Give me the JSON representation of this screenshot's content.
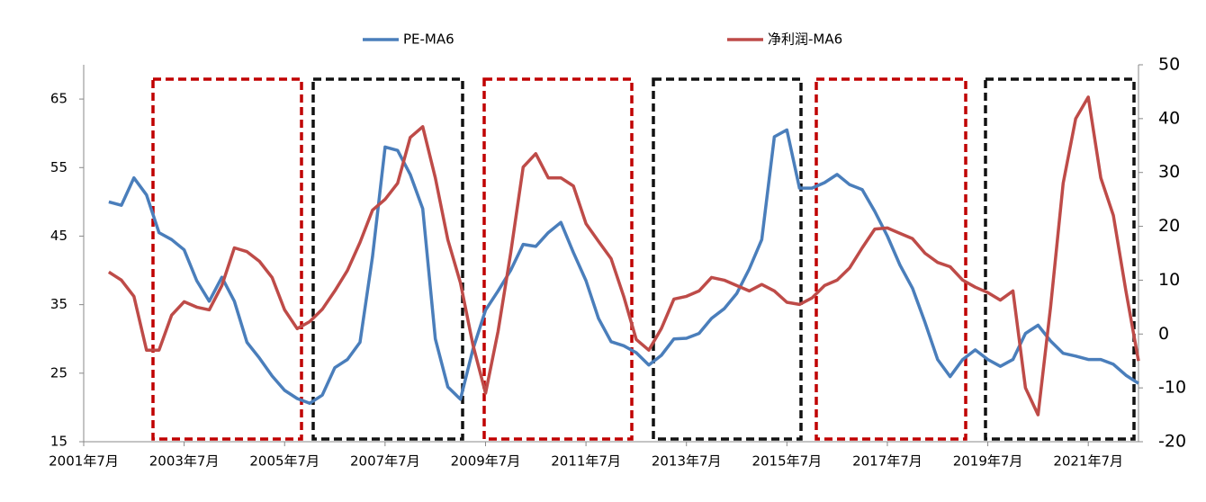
{
  "chart_data": {
    "type": "line",
    "categories": [
      "2001年7月",
      null,
      null,
      null,
      null,
      null,
      null,
      null,
      "2003年7月",
      null,
      null,
      null,
      null,
      null,
      null,
      null,
      "2005年7月",
      null,
      null,
      null,
      null,
      null,
      null,
      null,
      "2007年7月",
      null,
      null,
      null,
      null,
      null,
      null,
      null,
      "2009年7月",
      null,
      null,
      null,
      null,
      null,
      null,
      null,
      "2011年7月",
      null,
      null,
      null,
      null,
      null,
      null,
      null,
      "2013年7月",
      null,
      null,
      null,
      null,
      null,
      null,
      null,
      "2015年7月",
      null,
      null,
      null,
      null,
      null,
      null,
      null,
      "2017年7月",
      null,
      null,
      null,
      null,
      null,
      null,
      null,
      "2019年7月",
      null,
      null,
      null,
      null,
      null,
      null,
      null,
      "2021年7月",
      null,
      null,
      null,
      null
    ],
    "series": [
      {
        "name": "PE-MA6",
        "color": "#4a7ebb",
        "axis": "y",
        "values": [
          null,
          null,
          50,
          49.5,
          53.5,
          51,
          45.5,
          44.5,
          43,
          38.5,
          35.5,
          39,
          35.5,
          29.5,
          27.2,
          24.6,
          22.5,
          21.3,
          20.6,
          21.8,
          25.8,
          27,
          29.5,
          42,
          58,
          57.5,
          54,
          49,
          30,
          23,
          21.2,
          28.5,
          34.2,
          37,
          40,
          43.8,
          43.5,
          45.5,
          47,
          42.6,
          38.5,
          33,
          29.6,
          29,
          28,
          26.2,
          27.6,
          30,
          30.1,
          30.8,
          33,
          34.4,
          36.6,
          40.2,
          44.5,
          59.5,
          60.5,
          52,
          52,
          52.8,
          54,
          52.5,
          51.8,
          48.6,
          45,
          40.8,
          37.4,
          32.4,
          27,
          24.5,
          27,
          28.4,
          27,
          26,
          27,
          30.8,
          32,
          29.7,
          27.9,
          27.5,
          27,
          27,
          26.3,
          24.7,
          23.5
        ]
      },
      {
        "name": "净利润-MA6",
        "color": "#be4b48",
        "axis": "y2",
        "values": [
          null,
          null,
          11.5,
          10,
          7,
          -3,
          -3,
          3.5,
          6,
          5,
          4.5,
          9,
          16,
          15.3,
          13.5,
          10.5,
          4.5,
          1,
          2.3,
          4.6,
          8,
          11.8,
          17,
          23,
          25,
          28,
          36.5,
          38.5,
          29,
          17.5,
          9.5,
          -2,
          -11,
          0.5,
          15,
          31,
          33.5,
          29,
          29,
          27.5,
          20.5,
          17.2,
          14,
          7,
          -1,
          -3,
          1,
          6.5,
          7,
          8,
          10.5,
          10,
          9,
          8,
          9.2,
          8,
          5.9,
          5.5,
          6.7,
          9,
          10,
          12.3,
          16,
          19.5,
          19.7,
          18.7,
          17.7,
          15,
          13.3,
          12.5,
          10,
          8.7,
          7.7,
          6.3,
          8,
          -10,
          -15,
          5,
          28,
          40,
          44,
          29,
          22,
          8,
          -5
        ]
      }
    ],
    "ylim": [
      15,
      70
    ],
    "yticks": [
      15,
      25,
      35,
      45,
      55,
      65
    ],
    "y2lim": [
      -20,
      50
    ],
    "y2ticks": [
      -20,
      -10,
      0,
      10,
      20,
      30,
      40,
      50
    ],
    "legend": "top",
    "grid": false
  }
}
